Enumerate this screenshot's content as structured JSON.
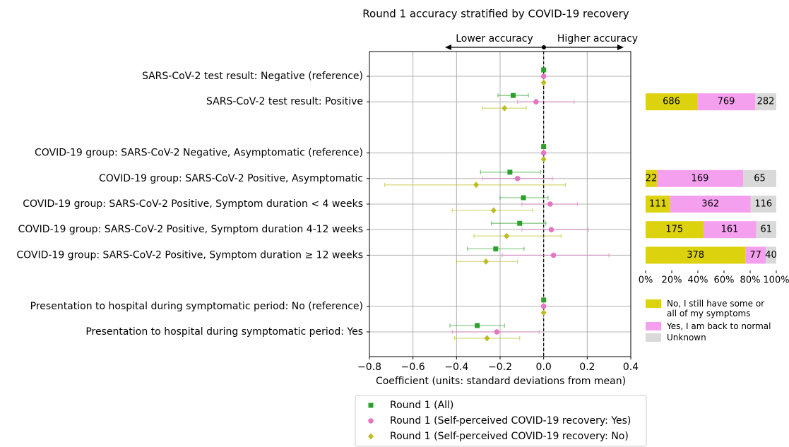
{
  "chart_data": [
    {
      "type": "forest",
      "title": "Round 1 accuracy stratified by COVID-19 recovery",
      "annotations": [
        "Lower accuracy",
        "Higher accuracy"
      ],
      "xlabel": "Coefficient (units: standard deviations from mean)",
      "categories": [
        "SARS-CoV-2 test result: Negative (reference)",
        "SARS-CoV-2 test result: Positive",
        null,
        "COVID-19 group: SARS-CoV-2 Negative, Asymptomatic (reference)",
        "COVID-19 group: SARS-CoV-2 Positive, Asymptomatic",
        "COVID-19 group: SARS-CoV-2 Positive, Symptom duration < 4 weeks",
        "COVID-19 group: SARS-CoV-2 Positive, Symptom duration 4-12 weeks",
        "COVID-19 group: SARS-CoV-2 Positive, Symptom duration ≥ 12 weeks",
        null,
        "Presentation to hospital during symptomatic period: No (reference)",
        "Presentation to hospital during symptomatic period: Yes"
      ],
      "xlim": [
        -0.8,
        0.4
      ],
      "xticks": [
        {
          "value": -0.8,
          "label": "−0.8"
        },
        {
          "value": -0.6,
          "label": "−0.6"
        },
        {
          "value": -0.4,
          "label": "−0.4"
        },
        {
          "value": -0.2,
          "label": "−0.2"
        },
        {
          "value": 0,
          "label": "0.0"
        },
        0.2,
        0.4
      ],
      "grid": true,
      "reference_line": 0,
      "legend": "lower center",
      "series": [
        {
          "name": "Round 1 (All)",
          "color": "#2ca02c",
          "marker": "square",
          "values": [
            0,
            -0.14,
            null,
            0,
            -0.155,
            -0.093,
            -0.11,
            -0.22,
            null,
            0,
            -0.305
          ],
          "lower": [
            null,
            -0.21,
            null,
            null,
            -0.29,
            -0.2,
            -0.24,
            -0.35,
            null,
            null,
            -0.43
          ],
          "upper": [
            null,
            -0.07,
            null,
            null,
            -0.015,
            0.02,
            0.01,
            -0.09,
            null,
            null,
            -0.18
          ]
        },
        {
          "name": "Round 1 (Self-perceived COVID-19 recovery: Yes)",
          "color": "#e377c2",
          "marker": "circle",
          "values": [
            0,
            -0.035,
            null,
            0,
            -0.12,
            0.03,
            0.035,
            0.045,
            null,
            0,
            -0.215
          ],
          "lower": [
            null,
            -0.12,
            null,
            null,
            -0.28,
            -0.1,
            -0.1,
            -0.19,
            null,
            null,
            -0.42
          ],
          "upper": [
            null,
            0.14,
            null,
            null,
            0.04,
            0.155,
            0.205,
            0.3,
            null,
            null,
            -0.02
          ]
        },
        {
          "name": "Round 1 (Self-perceived COVID-19 recovery: No)",
          "color": "#bcbd22",
          "marker": "diamond",
          "values": [
            0,
            -0.18,
            null,
            0,
            -0.31,
            -0.23,
            -0.17,
            -0.265,
            null,
            0,
            -0.26
          ],
          "lower": [
            null,
            -0.28,
            null,
            null,
            -0.73,
            -0.42,
            -0.32,
            -0.4,
            null,
            null,
            -0.41
          ],
          "upper": [
            null,
            -0.08,
            null,
            null,
            0.1,
            -0.05,
            0.08,
            -0.12,
            null,
            null,
            -0.11
          ]
        }
      ]
    },
    {
      "type": "bar",
      "orientation": "horizontal",
      "stacking": "percent",
      "xlim": [
        0,
        100
      ],
      "xticks": [
        {
          "value": 0,
          "label": "0%"
        },
        {
          "value": 20,
          "label": "20%"
        },
        {
          "value": 40,
          "label": "40%"
        },
        {
          "value": 60,
          "label": "60%"
        },
        {
          "value": 80,
          "label": "80%"
        },
        {
          "value": 100,
          "label": "100%"
        }
      ],
      "legend": "lower right",
      "series": [
        {
          "name": "No, I still have some or all of my symptoms",
          "color": "#dcd20e",
          "values": [
            null,
            686,
            null,
            null,
            22,
            111,
            175,
            378,
            null,
            null,
            null
          ]
        },
        {
          "name": "Yes, I am back to normal",
          "color": "#f4a0ee",
          "values": [
            null,
            769,
            null,
            null,
            169,
            362,
            161,
            77,
            null,
            null,
            null
          ]
        },
        {
          "name": "Unknown",
          "color": "#d9d9d9",
          "values": [
            null,
            282,
            null,
            null,
            65,
            116,
            61,
            40,
            null,
            null,
            null
          ]
        }
      ]
    }
  ]
}
